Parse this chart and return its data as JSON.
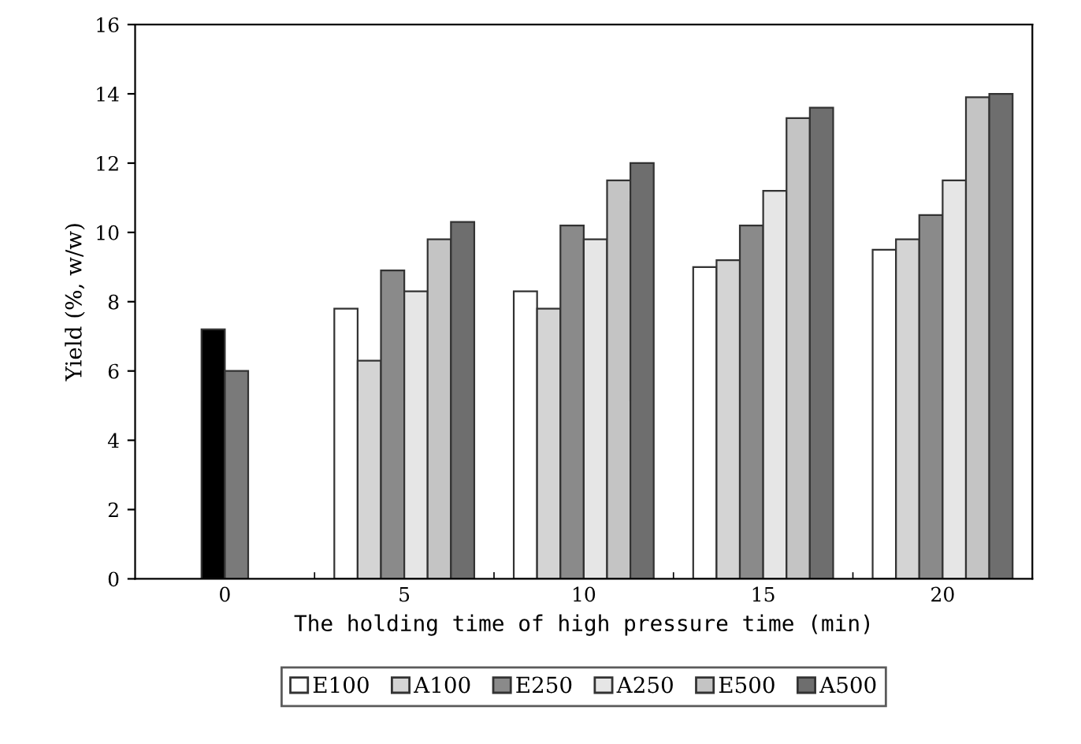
{
  "chart_data": {
    "type": "bar",
    "xlabel": "The holding time of high pressure time (min)",
    "ylabel": "Yield (%, w/w)",
    "categories": [
      "0",
      "5",
      "10",
      "15",
      "20"
    ],
    "series": [
      {
        "color": "#000000",
        "values": [
          7.2,
          null,
          null,
          null,
          null
        ]
      },
      {
        "color": "#7a7a7a",
        "values": [
          6.0,
          null,
          null,
          null,
          null
        ]
      },
      {
        "name": "E100",
        "color": "#ffffff",
        "values": [
          null,
          7.8,
          8.3,
          9.0,
          9.5
        ]
      },
      {
        "name": "A100",
        "color": "#d4d4d4",
        "values": [
          null,
          6.3,
          7.8,
          9.2,
          9.8
        ]
      },
      {
        "name": "E250",
        "color": "#8a8a8a",
        "values": [
          null,
          8.9,
          10.2,
          10.2,
          10.5
        ]
      },
      {
        "name": "A250",
        "color": "#e6e6e6",
        "values": [
          null,
          8.3,
          9.8,
          11.2,
          11.5
        ]
      },
      {
        "name": "E500",
        "color": "#c4c4c4",
        "values": [
          null,
          9.8,
          11.5,
          13.3,
          13.9
        ]
      },
      {
        "name": "A500",
        "color": "#6e6e6e",
        "values": [
          null,
          10.3,
          12.0,
          13.6,
          14.0
        ]
      }
    ],
    "ylim": [
      0,
      16
    ],
    "yticks": [
      0,
      2,
      4,
      6,
      8,
      10,
      12,
      14,
      16
    ],
    "grid": false,
    "legend": "bottom"
  }
}
